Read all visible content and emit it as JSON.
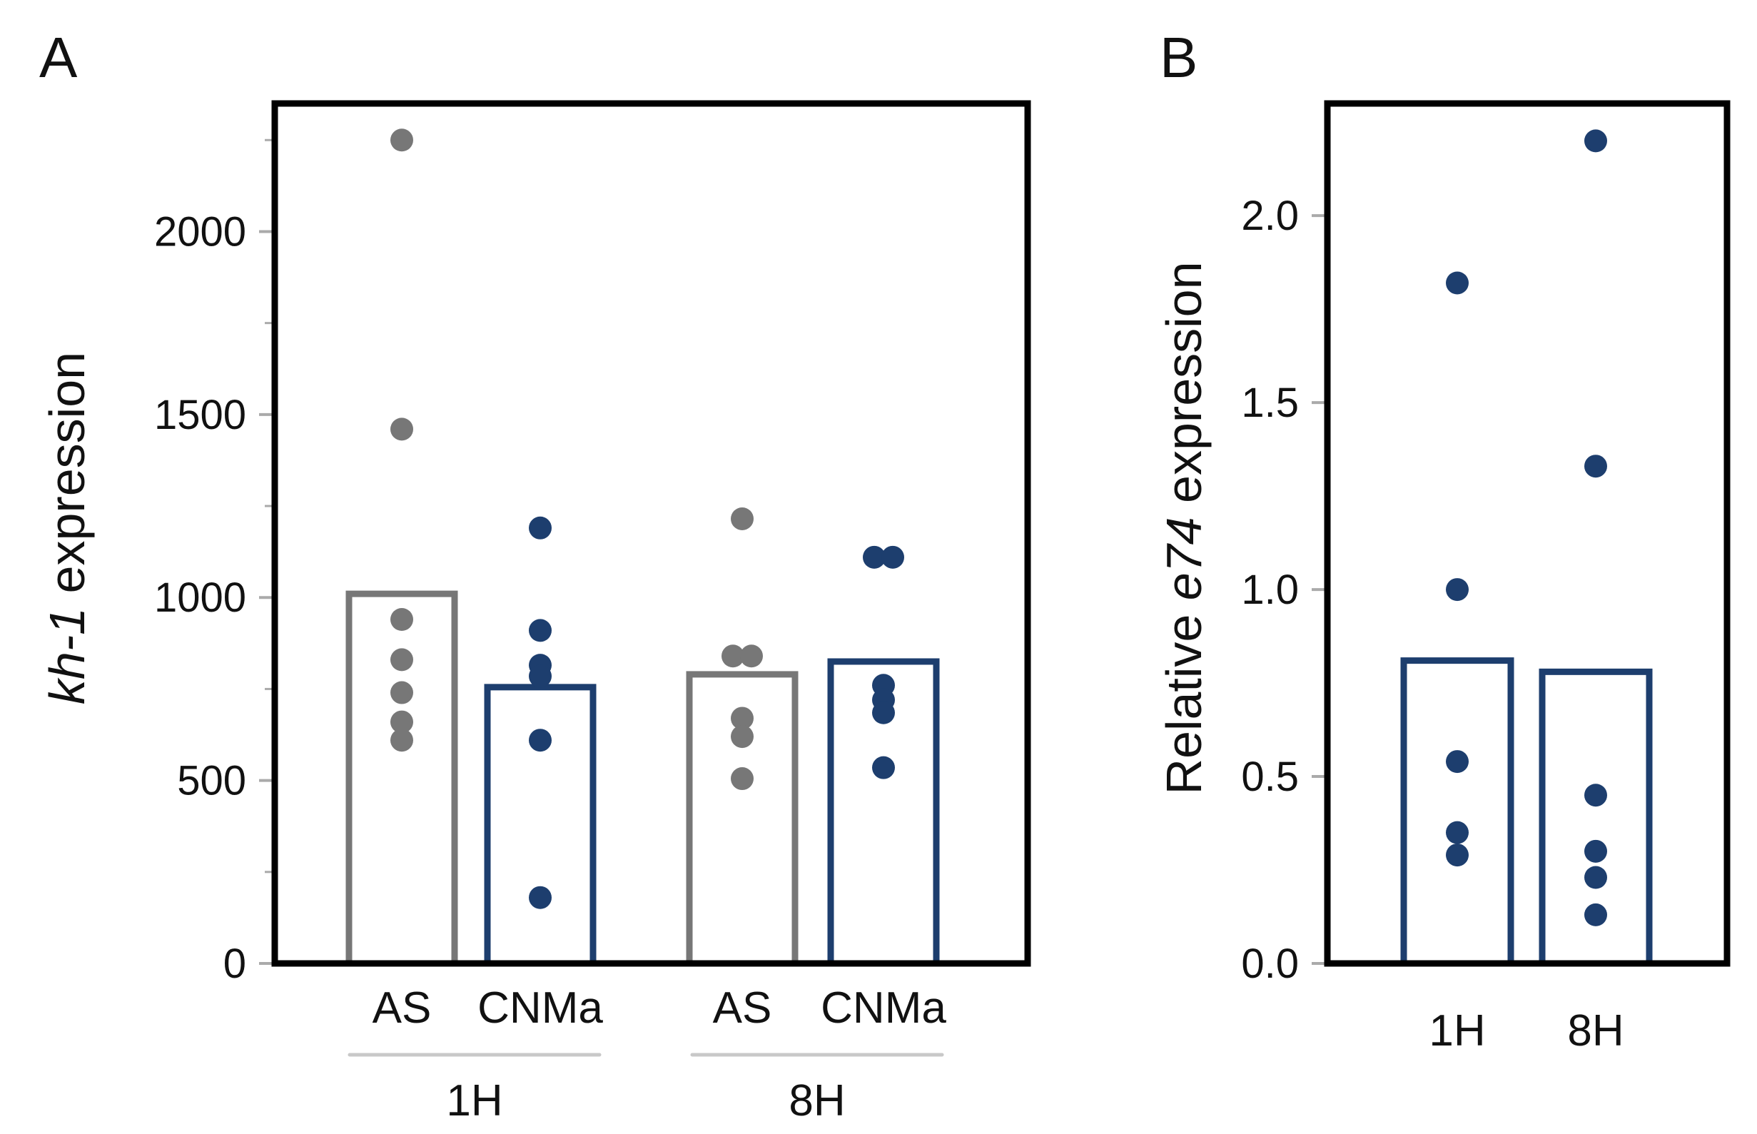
{
  "colors": {
    "as": "#777777",
    "cnma": "#1d3e6e",
    "frame": "#000000",
    "group_line": "#c8c8c8",
    "minor_tick": "#aaaaaa"
  },
  "chart_data": [
    {
      "panel": "A",
      "type": "bar",
      "ylabel_italic": "kh-1",
      "ylabel_rest": " expression",
      "ylim": [
        0,
        2350
      ],
      "yticks": [
        0,
        500,
        1000,
        1500,
        2000
      ],
      "ytick_labels": [
        "0",
        "500",
        "1000",
        "1500",
        "2000"
      ],
      "minor_yticks": [
        250,
        750,
        1250,
        1750,
        2250
      ],
      "groups": [
        {
          "label": "1H",
          "bars": [
            0,
            1
          ]
        },
        {
          "label": "8H",
          "bars": [
            2,
            3
          ]
        }
      ],
      "bars": [
        {
          "label": "AS",
          "series": "as",
          "value": 1010,
          "points": [
            2250,
            1460,
            940,
            830,
            740,
            660,
            610
          ]
        },
        {
          "label": "CNMa",
          "series": "cnma",
          "value": 755,
          "points": [
            1190,
            910,
            815,
            785,
            610,
            180
          ]
        },
        {
          "label": "AS",
          "series": "as",
          "value": 790,
          "points": [
            1215,
            840,
            840,
            670,
            620,
            505
          ]
        },
        {
          "label": "CNMa",
          "series": "cnma",
          "value": 825,
          "points": [
            1110,
            1110,
            760,
            720,
            685,
            535
          ]
        }
      ]
    },
    {
      "panel": "B",
      "type": "bar",
      "ylabel_pre": "Relative ",
      "ylabel_italic": "e74",
      "ylabel_rest": " expression",
      "ylim": [
        0,
        2.3
      ],
      "yticks": [
        0,
        0.5,
        1.0,
        1.5,
        2.0
      ],
      "ytick_labels": [
        "0.0",
        "0.5",
        "1.0",
        "1.5",
        "2.0"
      ],
      "bars": [
        {
          "label": "1H",
          "series": "cnma",
          "value": 0.81,
          "points": [
            1.82,
            1.0,
            0.54,
            0.35,
            0.29
          ]
        },
        {
          "label": "8H",
          "series": "cnma",
          "value": 0.78,
          "points": [
            2.2,
            1.33,
            0.45,
            0.3,
            0.23,
            0.13
          ]
        }
      ]
    }
  ]
}
